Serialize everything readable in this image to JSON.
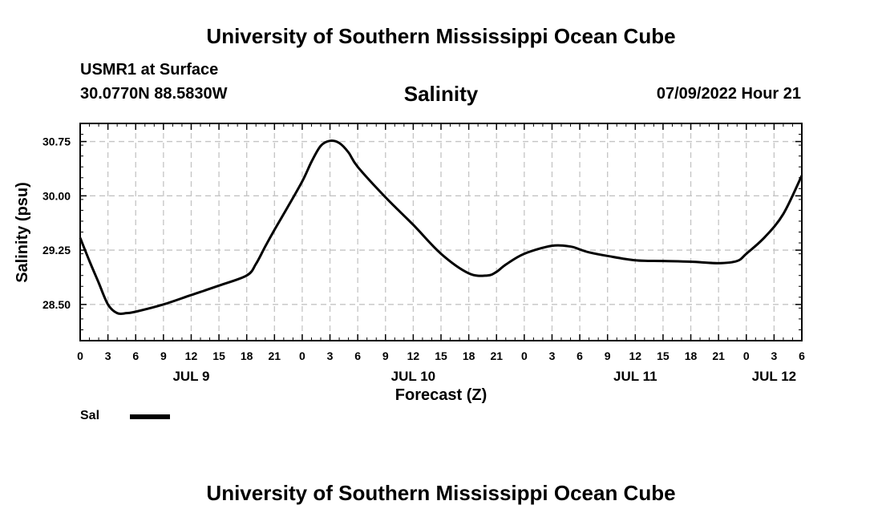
{
  "header": {
    "main_title": "University of Southern Mississippi Ocean Cube",
    "station": "USMR1 at Surface",
    "coordinates": "30.0770N  88.5830W",
    "variable_title": "Salinity",
    "datetime": "07/09/2022 Hour 21"
  },
  "footer": {
    "main_title": "University of Southern Mississippi Ocean Cube"
  },
  "legend": {
    "label": "Sal",
    "color": "#000000"
  },
  "chart_data": {
    "type": "line",
    "title": "Salinity",
    "xlabel": "Forecast (Z)",
    "ylabel": "Salinity (psu)",
    "ylim": [
      28.0,
      31.0
    ],
    "yticks": [
      28.5,
      29.25,
      30.0,
      30.75
    ],
    "ytick_labels": [
      "28.50",
      "29.25",
      "30.00",
      "30.75"
    ],
    "xlim": [
      0,
      78
    ],
    "x_unit": "hours since JUL 9 00Z",
    "xtick_hours": [
      0,
      3,
      6,
      9,
      12,
      15,
      18,
      21,
      24,
      27,
      30,
      33,
      36,
      39,
      42,
      45,
      48,
      51,
      54,
      57,
      60,
      63,
      66,
      69,
      72,
      75,
      78
    ],
    "xtick_labels": [
      "0",
      "3",
      "6",
      "9",
      "12",
      "15",
      "18",
      "21",
      "0",
      "3",
      "6",
      "9",
      "12",
      "15",
      "18",
      "21",
      "0",
      "3",
      "6",
      "9",
      "12",
      "15",
      "18",
      "21",
      "0",
      "3",
      "6"
    ],
    "date_labels": [
      {
        "hour": 12,
        "label": "JUL 9"
      },
      {
        "hour": 36,
        "label": "JUL 10"
      },
      {
        "hour": 60,
        "label": "JUL 11"
      },
      {
        "hour": 75,
        "label": "JUL 12"
      }
    ],
    "grid": true,
    "series": [
      {
        "name": "Sal",
        "x": [
          0,
          1,
          2,
          3,
          4,
          5,
          6,
          9,
          12,
          15,
          18,
          19,
          20,
          21,
          22,
          24,
          25,
          26,
          27,
          28,
          29,
          30,
          33,
          36,
          39,
          42,
          44,
          45,
          46,
          48,
          51,
          53,
          54,
          55,
          57,
          60,
          63,
          66,
          69,
          71,
          72,
          74,
          76,
          78
        ],
        "y": [
          29.42,
          29.1,
          28.8,
          28.5,
          28.38,
          28.38,
          28.4,
          28.5,
          28.63,
          28.76,
          28.9,
          29.06,
          29.3,
          29.53,
          29.75,
          30.2,
          30.47,
          30.69,
          30.76,
          30.73,
          30.6,
          30.4,
          29.98,
          29.6,
          29.2,
          28.93,
          28.9,
          28.95,
          29.05,
          29.2,
          29.31,
          29.3,
          29.26,
          29.22,
          29.17,
          29.11,
          29.1,
          29.09,
          29.07,
          29.1,
          29.2,
          29.43,
          29.75,
          30.28
        ]
      }
    ]
  }
}
